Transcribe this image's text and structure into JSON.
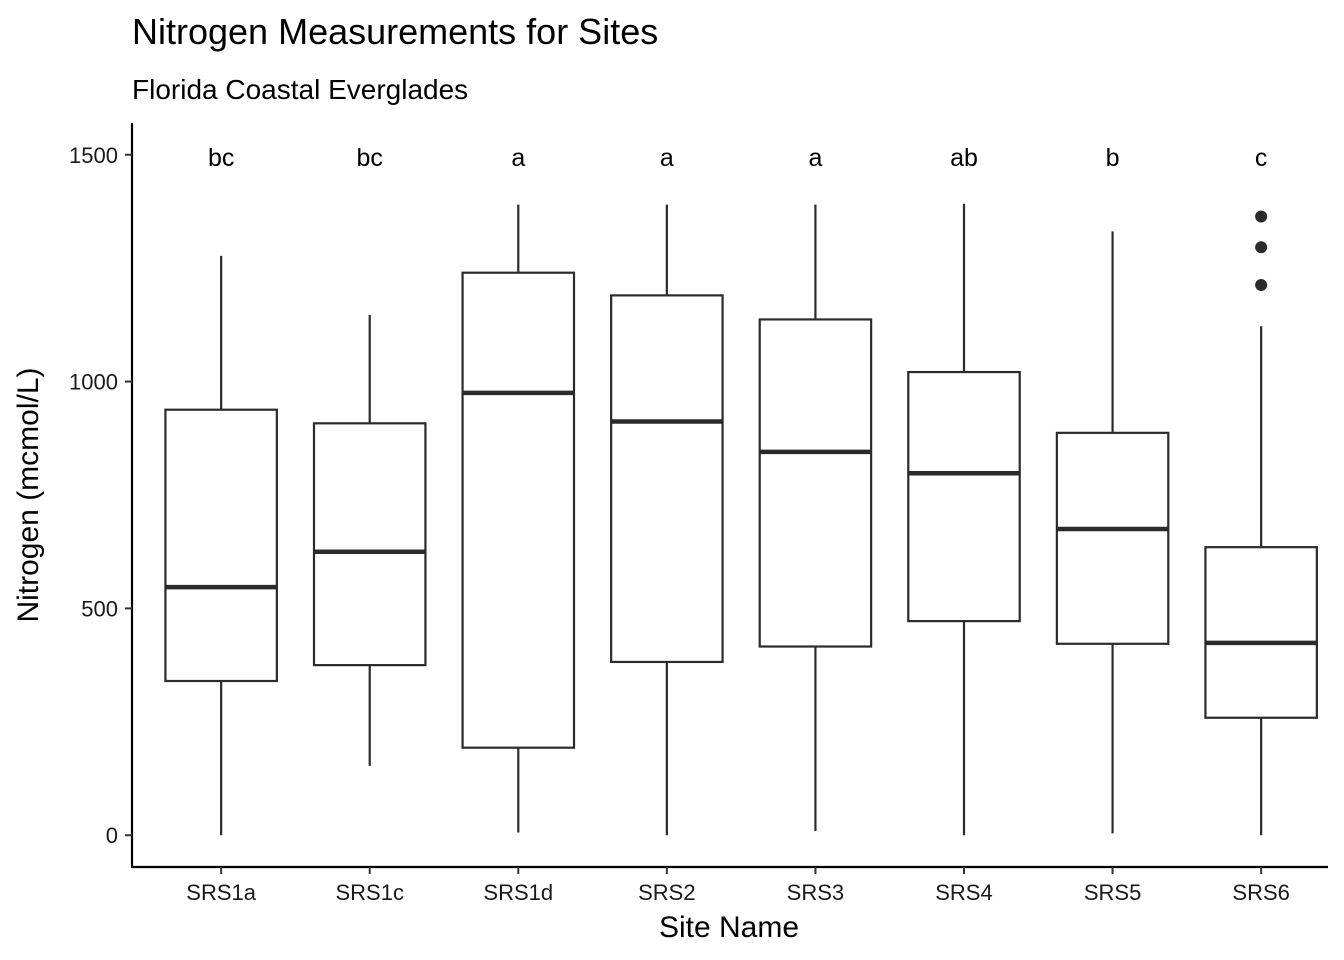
{
  "chart_data": {
    "type": "box",
    "title": "Nitrogen Measurements for Sites",
    "subtitle": "Florida Coastal Everglades",
    "xlabel": "Site Name",
    "ylabel": "Nitrogen (mcmol/L)",
    "ylim": [
      -70,
      1570
    ],
    "yticks": [
      0,
      500,
      1000,
      1500
    ],
    "grid": false,
    "legend": "none",
    "categories": [
      "SRS1a",
      "SRS1c",
      "SRS1d",
      "SRS2",
      "SRS3",
      "SRS4",
      "SRS5",
      "SRS6"
    ],
    "boxes": [
      {
        "site": "SRS1a",
        "min": 0,
        "q1": 340,
        "median": 547,
        "q3": 938,
        "max": 1277,
        "outliers": [],
        "letter": "bc"
      },
      {
        "site": "SRS1c",
        "min": 153,
        "q1": 375,
        "median": 625,
        "q3": 908,
        "max": 1147,
        "outliers": [],
        "letter": "bc"
      },
      {
        "site": "SRS1d",
        "min": 6,
        "q1": 193,
        "median": 975,
        "q3": 1240,
        "max": 1390,
        "outliers": [],
        "letter": "a"
      },
      {
        "site": "SRS2",
        "min": 0,
        "q1": 382,
        "median": 912,
        "q3": 1190,
        "max": 1390,
        "outliers": [],
        "letter": "a"
      },
      {
        "site": "SRS3",
        "min": 9,
        "q1": 416,
        "median": 845,
        "q3": 1137,
        "max": 1390,
        "outliers": [],
        "letter": "a"
      },
      {
        "site": "SRS4",
        "min": 0,
        "q1": 472,
        "median": 798,
        "q3": 1021,
        "max": 1392,
        "outliers": [],
        "letter": "ab"
      },
      {
        "site": "SRS5",
        "min": 4,
        "q1": 422,
        "median": 675,
        "q3": 887,
        "max": 1331,
        "outliers": [],
        "letter": "b"
      },
      {
        "site": "SRS6",
        "min": 0,
        "q1": 259,
        "median": 424,
        "q3": 635,
        "max": 1122,
        "outliers": [
          1213,
          1296,
          1364
        ],
        "letter": "c"
      }
    ],
    "colors": {
      "box_fill": "#ffffff",
      "box_stroke": "#2b2b2b",
      "axis": "#000000",
      "outlier": "#2b2b2b"
    }
  }
}
